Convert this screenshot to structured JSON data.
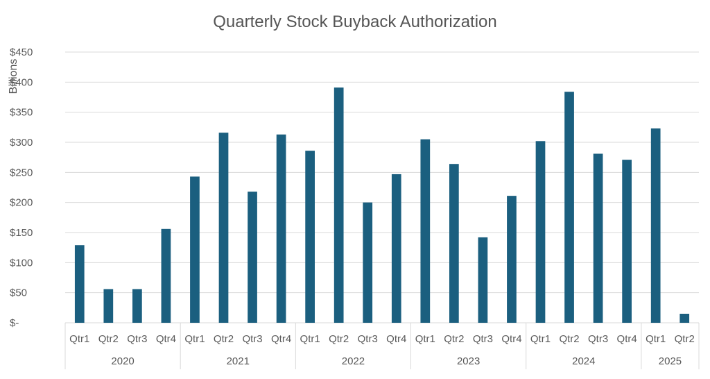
{
  "chart_data": {
    "type": "bar",
    "title": "Quarterly Stock Buyback Authorization",
    "ylabel": "Billions",
    "xlabel": "",
    "ylim": [
      0,
      450
    ],
    "y_ticks": [
      {
        "value": 0,
        "label": "$-"
      },
      {
        "value": 50,
        "label": "$50"
      },
      {
        "value": 100,
        "label": "$100"
      },
      {
        "value": 150,
        "label": "$150"
      },
      {
        "value": 200,
        "label": "$200"
      },
      {
        "value": 250,
        "label": "$250"
      },
      {
        "value": 300,
        "label": "$300"
      },
      {
        "value": 350,
        "label": "$350"
      },
      {
        "value": 400,
        "label": "$400"
      },
      {
        "value": 450,
        "label": "$450"
      }
    ],
    "grid": true,
    "bar_color": "#1b5f7f",
    "groups": [
      {
        "label": "2020",
        "categories": [
          "Qtr1",
          "Qtr2",
          "Qtr3",
          "Qtr4"
        ],
        "values": [
          129,
          56,
          56,
          156
        ]
      },
      {
        "label": "2021",
        "categories": [
          "Qtr1",
          "Qtr2",
          "Qtr3",
          "Qtr4"
        ],
        "values": [
          243,
          316,
          218,
          313
        ]
      },
      {
        "label": "2022",
        "categories": [
          "Qtr1",
          "Qtr2",
          "Qtr3",
          "Qtr4"
        ],
        "values": [
          286,
          391,
          200,
          247
        ]
      },
      {
        "label": "2023",
        "categories": [
          "Qtr1",
          "Qtr2",
          "Qtr3",
          "Qtr4"
        ],
        "values": [
          305,
          264,
          142,
          211
        ]
      },
      {
        "label": "2024",
        "categories": [
          "Qtr1",
          "Qtr2",
          "Qtr3",
          "Qtr4"
        ],
        "values": [
          302,
          384,
          281,
          271
        ]
      },
      {
        "label": "2025",
        "categories": [
          "Qtr1",
          "Qtr2"
        ],
        "values": [
          323,
          15
        ]
      }
    ]
  }
}
